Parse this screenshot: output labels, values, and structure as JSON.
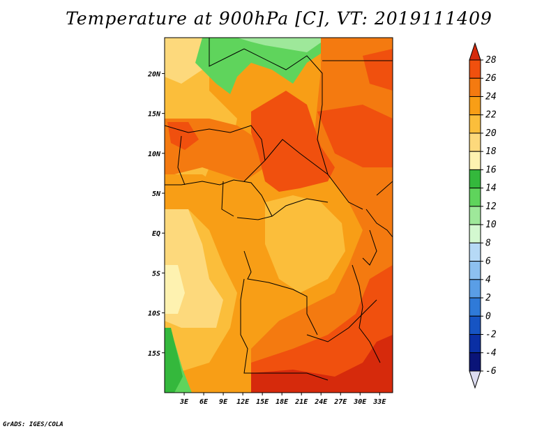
{
  "title": "Temperature at 900hPa [C], VT: 2019111409",
  "credit": "GrADS: IGES/COLA",
  "map": {
    "lon_labels": [
      "3E",
      "6E",
      "9E",
      "12E",
      "15E",
      "18E",
      "21E",
      "24E",
      "27E",
      "30E",
      "33E"
    ],
    "lat_labels": [
      "20N",
      "15N",
      "10N",
      "5N",
      "EQ",
      "5S",
      "10S",
      "15S"
    ],
    "lon_range": [
      0,
      35
    ],
    "lat_range": [
      -20,
      24.5
    ]
  },
  "colorbar": {
    "levels": [
      "28",
      "26",
      "24",
      "22",
      "20",
      "18",
      "16",
      "14",
      "12",
      "10",
      "8",
      "6",
      "4",
      "2",
      "0",
      "-2",
      "-4",
      "-6"
    ],
    "colors": [
      "#d62a0c",
      "#f0500e",
      "#f47a10",
      "#f89e16",
      "#fbbe3b",
      "#fdd97c",
      "#fef2b0",
      "#34b83c",
      "#5fd45c",
      "#9ee89a",
      "#d3f8d0",
      "#b6d9f6",
      "#8dc0f0",
      "#5a9ee6",
      "#2f7ad8",
      "#1654c3",
      "#0a2fa4",
      "#0a1478",
      "#dcdcf0"
    ]
  }
}
